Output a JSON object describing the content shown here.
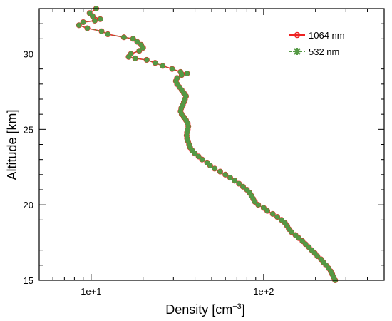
{
  "chart_data": {
    "type": "line",
    "xscale": "log",
    "xlim": [
      5,
      500
    ],
    "ylim": [
      15,
      33
    ],
    "xlabel": "Density [cm",
    "xlabel_sup": "−3",
    "xlabel_end": "]",
    "ylabel": "Altitude [km]",
    "x_tick_labels": [
      "1e+1",
      "1e+2"
    ],
    "x_major_ticks": [
      10,
      100
    ],
    "y_ticks": [
      15,
      20,
      25,
      30
    ],
    "grid": false,
    "legend_position": "top-right",
    "colors": {
      "line_1064": "#ee2222",
      "marker_532": "#559944"
    },
    "legend": [
      {
        "label": "1064 nm",
        "color": "#ee2222",
        "marker": "open-circle"
      },
      {
        "label": "532 nm",
        "color": "#559944",
        "marker": "asterisk"
      }
    ],
    "series": [
      {
        "name": "1064 nm",
        "points": [
          [
            260,
            15.0
          ],
          [
            255,
            15.2
          ],
          [
            250,
            15.4
          ],
          [
            245,
            15.6
          ],
          [
            238,
            15.8
          ],
          [
            230,
            16.0
          ],
          [
            222,
            16.2
          ],
          [
            215,
            16.4
          ],
          [
            205,
            16.6
          ],
          [
            198,
            16.8
          ],
          [
            190,
            17.0
          ],
          [
            183,
            17.2
          ],
          [
            175,
            17.4
          ],
          [
            168,
            17.6
          ],
          [
            160,
            17.8
          ],
          [
            153,
            18.0
          ],
          [
            145,
            18.2
          ],
          [
            140,
            18.4
          ],
          [
            137,
            18.6
          ],
          [
            133,
            18.8
          ],
          [
            127,
            19.0
          ],
          [
            120,
            19.2
          ],
          [
            113,
            19.4
          ],
          [
            105,
            19.6
          ],
          [
            100,
            19.8
          ],
          [
            93,
            20.0
          ],
          [
            89,
            20.2
          ],
          [
            87,
            20.4
          ],
          [
            85,
            20.6
          ],
          [
            83,
            20.8
          ],
          [
            80,
            21.0
          ],
          [
            76,
            21.2
          ],
          [
            72,
            21.4
          ],
          [
            68,
            21.6
          ],
          [
            64,
            21.8
          ],
          [
            60,
            22.0
          ],
          [
            56,
            22.2
          ],
          [
            52,
            22.4
          ],
          [
            49,
            22.6
          ],
          [
            47,
            22.8
          ],
          [
            44,
            23.0
          ],
          [
            42,
            23.2
          ],
          [
            40,
            23.4
          ],
          [
            38.5,
            23.6
          ],
          [
            37.5,
            23.8
          ],
          [
            37,
            24.0
          ],
          [
            36.5,
            24.2
          ],
          [
            36,
            24.4
          ],
          [
            35.8,
            24.6
          ],
          [
            36,
            24.8
          ],
          [
            36.3,
            25.0
          ],
          [
            36.6,
            25.2
          ],
          [
            36.3,
            25.4
          ],
          [
            35.5,
            25.6
          ],
          [
            34.5,
            25.8
          ],
          [
            33.5,
            26.0
          ],
          [
            33,
            26.2
          ],
          [
            33.3,
            26.4
          ],
          [
            34,
            26.6
          ],
          [
            34.5,
            26.8
          ],
          [
            35,
            27.0
          ],
          [
            35.5,
            27.2
          ],
          [
            34.5,
            27.4
          ],
          [
            33.5,
            27.6
          ],
          [
            32.5,
            27.8
          ],
          [
            31.5,
            28.0
          ],
          [
            31,
            28.2
          ],
          [
            31.5,
            28.4
          ],
          [
            33.5,
            28.6
          ],
          [
            36,
            28.7
          ],
          [
            33,
            28.8
          ],
          [
            29.5,
            29.0
          ],
          [
            26,
            29.2
          ],
          [
            23.5,
            29.4
          ],
          [
            21,
            29.6
          ],
          [
            18,
            29.7
          ],
          [
            16.5,
            29.8
          ],
          [
            17,
            30.0
          ],
          [
            19,
            30.2
          ],
          [
            20,
            30.4
          ],
          [
            19.5,
            30.6
          ],
          [
            18.5,
            30.8
          ],
          [
            17.5,
            31.0
          ],
          [
            15.5,
            31.1
          ],
          [
            12.5,
            31.3
          ],
          [
            11.5,
            31.5
          ],
          [
            9.5,
            31.7
          ],
          [
            8.5,
            31.9
          ],
          [
            9,
            32.1
          ],
          [
            10.5,
            32.2
          ],
          [
            11.3,
            32.3
          ],
          [
            10.2,
            32.5
          ],
          [
            9.8,
            32.7
          ],
          [
            10.7,
            33.0
          ]
        ]
      },
      {
        "name": "532 nm",
        "points": [
          [
            260,
            15.0
          ],
          [
            255,
            15.2
          ],
          [
            250,
            15.4
          ],
          [
            245,
            15.6
          ],
          [
            238,
            15.8
          ],
          [
            230,
            16.0
          ],
          [
            222,
            16.2
          ],
          [
            215,
            16.4
          ],
          [
            205,
            16.6
          ],
          [
            198,
            16.8
          ],
          [
            190,
            17.0
          ],
          [
            183,
            17.2
          ],
          [
            175,
            17.4
          ],
          [
            168,
            17.6
          ],
          [
            160,
            17.8
          ],
          [
            153,
            18.0
          ],
          [
            145,
            18.2
          ],
          [
            140,
            18.4
          ],
          [
            137,
            18.6
          ],
          [
            133,
            18.8
          ],
          [
            127,
            19.0
          ],
          [
            120,
            19.2
          ],
          [
            113,
            19.4
          ],
          [
            105,
            19.6
          ],
          [
            100,
            19.8
          ],
          [
            93,
            20.0
          ],
          [
            89,
            20.2
          ],
          [
            87,
            20.4
          ],
          [
            85,
            20.6
          ],
          [
            83,
            20.8
          ],
          [
            80,
            21.0
          ],
          [
            76,
            21.2
          ],
          [
            72,
            21.4
          ],
          [
            68,
            21.6
          ],
          [
            64,
            21.8
          ],
          [
            60,
            22.0
          ],
          [
            56,
            22.2
          ],
          [
            52,
            22.4
          ],
          [
            49,
            22.6
          ],
          [
            47,
            22.8
          ],
          [
            44,
            23.0
          ],
          [
            42,
            23.2
          ],
          [
            40,
            23.4
          ],
          [
            38.5,
            23.6
          ],
          [
            37.5,
            23.8
          ],
          [
            37,
            24.0
          ],
          [
            36.5,
            24.2
          ],
          [
            36,
            24.4
          ],
          [
            35.8,
            24.6
          ],
          [
            36,
            24.8
          ],
          [
            36.3,
            25.0
          ],
          [
            36.6,
            25.2
          ],
          [
            36.3,
            25.4
          ],
          [
            35.5,
            25.6
          ],
          [
            34.5,
            25.8
          ],
          [
            33.5,
            26.0
          ],
          [
            33,
            26.2
          ],
          [
            33.3,
            26.4
          ],
          [
            34,
            26.6
          ],
          [
            34.5,
            26.8
          ],
          [
            35,
            27.0
          ],
          [
            35.5,
            27.2
          ],
          [
            34.5,
            27.4
          ],
          [
            33.5,
            27.6
          ],
          [
            32.5,
            27.8
          ],
          [
            31.5,
            28.0
          ],
          [
            31,
            28.2
          ],
          [
            31.5,
            28.4
          ],
          [
            33.5,
            28.6
          ],
          [
            36,
            28.7
          ],
          [
            33,
            28.8
          ],
          [
            29.5,
            29.0
          ],
          [
            26,
            29.2
          ],
          [
            23.5,
            29.4
          ],
          [
            21,
            29.6
          ],
          [
            18,
            29.7
          ],
          [
            16.5,
            29.8
          ],
          [
            17,
            30.0
          ],
          [
            19,
            30.2
          ],
          [
            20,
            30.4
          ],
          [
            19.5,
            30.6
          ],
          [
            18.5,
            30.8
          ],
          [
            17.5,
            31.0
          ],
          [
            15.5,
            31.1
          ],
          [
            12.5,
            31.3
          ],
          [
            11.5,
            31.5
          ],
          [
            9.5,
            31.7
          ],
          [
            8.5,
            31.9
          ],
          [
            9,
            32.1
          ],
          [
            10.5,
            32.2
          ],
          [
            11.3,
            32.3
          ],
          [
            10.2,
            32.5
          ],
          [
            9.8,
            32.7
          ],
          [
            10.7,
            33.0
          ]
        ]
      }
    ]
  }
}
